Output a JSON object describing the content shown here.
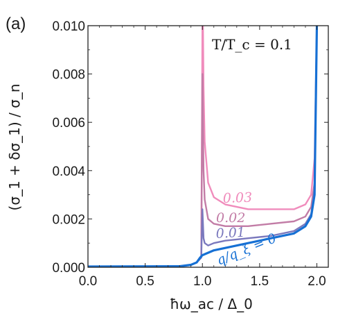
{
  "panel_label": "(a)",
  "chart_data": {
    "type": "line",
    "xlabel": "ħω_ac / Δ_0",
    "ylabel": "(σ_1 + δσ_1) / σ_n",
    "xlim": [
      0.0,
      2.1
    ],
    "ylim": [
      0.0,
      0.01
    ],
    "xticks": [
      0.0,
      0.5,
      1.0,
      1.5,
      2.0
    ],
    "xtick_labels": [
      "0.0",
      "0.5",
      "1.0",
      "1.5",
      "2.0"
    ],
    "yticks": [
      0.0,
      0.002,
      0.004,
      0.006,
      0.008,
      0.01
    ],
    "ytick_labels": [
      "0.000",
      "0.002",
      "0.004",
      "0.006",
      "0.008",
      "0.010"
    ],
    "grid": false,
    "annotation": "T/T_c = 0.1",
    "series": [
      {
        "label": "0.03",
        "color": "#f08cbc",
        "x": [
          0.0,
          0.8,
          0.9,
          0.95,
          0.99,
          1.0,
          1.005,
          1.01,
          1.02,
          1.05,
          1.1,
          1.2,
          1.4,
          1.6,
          1.8,
          1.9,
          1.95,
          1.98,
          2.0
        ],
        "y": [
          3e-05,
          4e-05,
          0.0001,
          0.0002,
          0.0004,
          0.01,
          0.01,
          0.0075,
          0.0052,
          0.0035,
          0.0029,
          0.0026,
          0.0024,
          0.0024,
          0.0024,
          0.0026,
          0.003,
          0.0045,
          0.01
        ]
      },
      {
        "label": "0.02",
        "color": "#c27ca6",
        "x": [
          0.0,
          0.8,
          0.9,
          0.95,
          0.99,
          1.0,
          1.01,
          1.02,
          1.05,
          1.1,
          1.2,
          1.4,
          1.6,
          1.8,
          1.9,
          1.95,
          1.98,
          2.0
        ],
        "y": [
          3e-05,
          4e-05,
          0.0001,
          0.0002,
          0.0004,
          0.008,
          0.004,
          0.0028,
          0.002,
          0.0018,
          0.0017,
          0.0017,
          0.0018,
          0.0019,
          0.0021,
          0.0025,
          0.0035,
          0.01
        ]
      },
      {
        "label": "0.01",
        "color": "#7a78bd",
        "x": [
          0.0,
          0.8,
          0.9,
          0.95,
          0.99,
          1.0,
          1.01,
          1.02,
          1.05,
          1.1,
          1.2,
          1.4,
          1.6,
          1.8,
          1.9,
          1.95,
          1.98,
          2.0
        ],
        "y": [
          3e-05,
          4e-05,
          0.0001,
          0.0002,
          0.0004,
          0.0024,
          0.0012,
          0.001,
          0.0009,
          0.001,
          0.0011,
          0.0012,
          0.0013,
          0.0015,
          0.0018,
          0.0022,
          0.0032,
          0.01
        ]
      },
      {
        "label": "q/q_ξ = 0",
        "color": "#1670d4",
        "x": [
          0.0,
          0.8,
          0.9,
          0.95,
          0.98,
          1.0,
          1.05,
          1.1,
          1.2,
          1.4,
          1.6,
          1.8,
          1.9,
          1.95,
          1.98,
          2.0
        ],
        "y": [
          3e-05,
          4e-05,
          0.0001,
          0.0002,
          0.0004,
          0.0005,
          0.0006,
          0.0007,
          0.0008,
          0.001,
          0.0012,
          0.0014,
          0.0017,
          0.0021,
          0.003,
          0.01
        ]
      }
    ]
  }
}
